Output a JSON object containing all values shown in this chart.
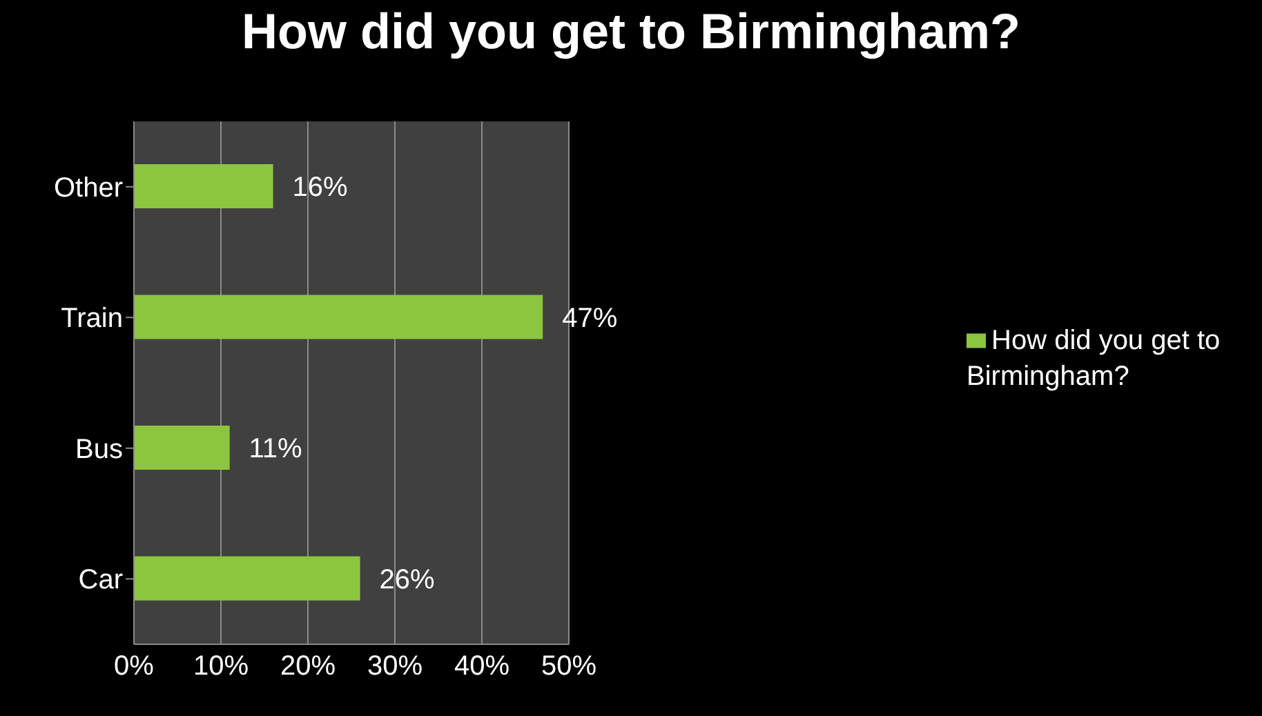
{
  "chart_data": {
    "type": "bar",
    "orientation": "horizontal",
    "title": "How did you get to Birmingham?",
    "categories": [
      "Other",
      "Train",
      "Bus",
      "Car"
    ],
    "series": [
      {
        "name": "How did you get to Birmingham?",
        "color": "#8cc63e",
        "values": [
          16,
          47,
          11,
          26
        ],
        "value_labels": [
          "16%",
          "47%",
          "11%",
          "26%"
        ]
      }
    ],
    "xlim": [
      0,
      50
    ],
    "xticks": [
      {
        "value": 0,
        "label": "0%"
      },
      {
        "value": 10,
        "label": "10%"
      },
      {
        "value": 20,
        "label": "20%"
      },
      {
        "value": 30,
        "label": "30%"
      },
      {
        "value": 40,
        "label": "40%"
      },
      {
        "value": 50,
        "label": "50%"
      }
    ],
    "grid": "x",
    "legend": "right"
  }
}
